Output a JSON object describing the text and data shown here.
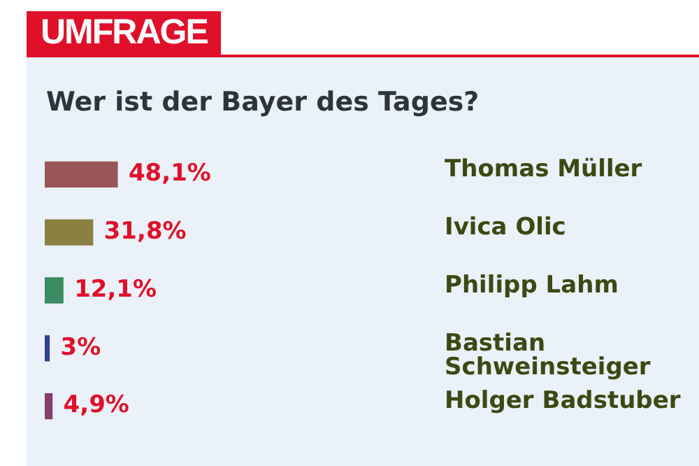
{
  "chart_data": {
    "type": "bar",
    "orientation": "horizontal",
    "title": "UMFRAGE",
    "subtitle": "Wer ist der Bayer des Tages?",
    "categories": [
      "Thomas Müller",
      "Ivica Olic",
      "Philipp Lahm",
      "Bastian Schweinsteiger",
      "Holger Badstuber"
    ],
    "values": [
      48.1,
      31.8,
      12.1,
      3,
      4.9
    ],
    "value_labels": [
      "48,1%",
      "31,8%",
      "12,1%",
      "3%",
      "4,9%"
    ],
    "colors": [
      "#9a5656",
      "#8a8040",
      "#3a8a62",
      "#34408a",
      "#84406e"
    ]
  }
}
